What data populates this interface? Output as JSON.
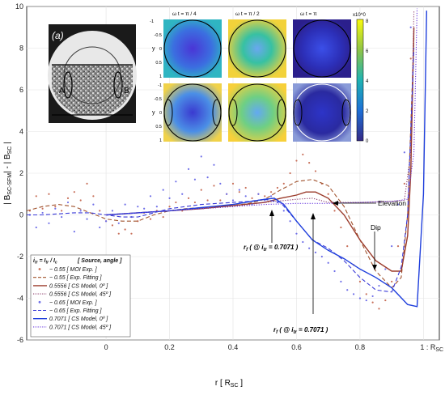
{
  "chart_data": {
    "type": "line",
    "xlabel": "r [ R",
    "xlabel_sub": "SC",
    "xlabel_close": " ]",
    "ylabel_parts": [
      "| B",
      "SC-SFM",
      "| - | B",
      "SC",
      " |"
    ],
    "xlim": [
      -0.25,
      1.05
    ],
    "ylim": [
      -6,
      10
    ],
    "x_ticks": [
      {
        "value": 0,
        "label": "0"
      },
      {
        "value": 0.2,
        "label": "0.2"
      },
      {
        "value": 0.4,
        "label": "0.4"
      },
      {
        "value": 0.6,
        "label": "0.6"
      },
      {
        "value": 0.8,
        "label": "0.8"
      },
      {
        "value": 1.0,
        "label": "1 : R"
      }
    ],
    "x_tick_last_sub": "SC",
    "y_ticks": [
      -6,
      -4,
      -2,
      0,
      2,
      4,
      6,
      8,
      10
    ],
    "grid": true,
    "legend": {
      "placement": "bottom-left",
      "header": "[ Source, angle ]",
      "header_formula": {
        "a": "i",
        "a_sub": "tr",
        "b": " = I",
        "b_sub": "tr",
        "c": " / I",
        "c_sub": "c"
      }
    },
    "series": [
      {
        "name": "~ 0.55 [ MOI Exp. ]",
        "color": "#c8705a",
        "style": "dots",
        "x": [
          -0.24,
          -0.22,
          -0.2,
          -0.18,
          -0.16,
          -0.14,
          -0.12,
          -0.1,
          -0.08,
          -0.06,
          -0.04,
          -0.02,
          0.0,
          0.02,
          0.04,
          0.06,
          0.08,
          0.1,
          0.12,
          0.14,
          0.16,
          0.18,
          0.2,
          0.22,
          0.24,
          0.26,
          0.28,
          0.3,
          0.32,
          0.34,
          0.36,
          0.38,
          0.4,
          0.42,
          0.44,
          0.46,
          0.48,
          0.5,
          0.52,
          0.54,
          0.56,
          0.58,
          0.6,
          0.62,
          0.64,
          0.66,
          0.68,
          0.7,
          0.72,
          0.74,
          0.76,
          0.78,
          0.8,
          0.82,
          0.84,
          0.86,
          0.88,
          0.9,
          0.92,
          0.94,
          0.96
        ],
        "y": [
          0.2,
          0.9,
          0.3,
          1.0,
          0.4,
          0.2,
          0.8,
          1.1,
          0.7,
          1.5,
          0.9,
          0.2,
          -0.3,
          -0.5,
          -0.9,
          -0.7,
          -0.9,
          -0.3,
          0.1,
          -0.2,
          0.2,
          -0.1,
          0.4,
          0.6,
          0.2,
          0.8,
          0.6,
          1.2,
          0.7,
          1.4,
          0.7,
          1.0,
          1.5,
          1.1,
          1.3,
          0.8,
          1.0,
          0.9,
          1.1,
          1.3,
          1.5,
          2.0,
          2.6,
          2.9,
          2.5,
          2.1,
          1.5,
          1.0,
          0.2,
          -0.6,
          -1.5,
          -2.4,
          -3.2,
          -3.8,
          -4.2,
          -4.5,
          -4.1,
          -3.2,
          -1.5,
          1.5,
          7.5
        ]
      },
      {
        "name": "~ 0.55 [ Exp. Fitting ]",
        "color": "#a0522d",
        "style": "dashed",
        "x": [
          -0.25,
          -0.2,
          -0.15,
          -0.1,
          -0.05,
          0.0,
          0.05,
          0.1,
          0.15,
          0.2,
          0.25,
          0.3,
          0.35,
          0.4,
          0.45,
          0.5,
          0.55,
          0.6,
          0.65,
          0.7,
          0.75,
          0.8,
          0.85,
          0.9,
          0.93,
          0.95,
          0.97
        ],
        "y": [
          0.2,
          0.4,
          0.5,
          0.4,
          0.1,
          -0.2,
          -0.3,
          -0.3,
          0.0,
          0.2,
          0.3,
          0.35,
          0.4,
          0.45,
          0.55,
          0.75,
          1.2,
          1.6,
          1.7,
          1.4,
          0.4,
          -1.2,
          -2.7,
          -3.5,
          -3.0,
          0.0,
          8.5
        ]
      },
      {
        "name": "0.5556 [ CS Model, 0º ]",
        "color": "#9b3b2b",
        "style": "solid",
        "x": [
          0.0,
          0.1,
          0.2,
          0.3,
          0.4,
          0.5,
          0.55,
          0.6,
          0.63,
          0.66,
          0.7,
          0.75,
          0.8,
          0.85,
          0.9,
          0.93,
          0.95,
          0.96,
          0.97
        ],
        "y": [
          0.0,
          0.1,
          0.2,
          0.3,
          0.45,
          0.6,
          0.8,
          0.95,
          1.1,
          1.1,
          0.8,
          0.0,
          -1.2,
          -2.2,
          -2.7,
          -2.7,
          -1.0,
          2.0,
          9.0
        ]
      },
      {
        "name": "0.5556 [ CS Model, 45º ]",
        "color": "#8a3a6a",
        "style": "dotted",
        "x": [
          0.0,
          0.1,
          0.2,
          0.3,
          0.4,
          0.5,
          0.6,
          0.65,
          0.7,
          0.8,
          0.9,
          0.94,
          0.96,
          0.97
        ],
        "y": [
          0.0,
          0.1,
          0.2,
          0.3,
          0.4,
          0.6,
          0.75,
          0.8,
          0.6,
          0.6,
          0.65,
          0.7,
          3.0,
          9.8
        ]
      },
      {
        "name": "~ 0.65 [ MOI Exp. ]",
        "color": "#6f6fe8",
        "style": "dots",
        "x": [
          -0.24,
          -0.22,
          -0.2,
          -0.18,
          -0.16,
          -0.14,
          -0.12,
          -0.1,
          -0.08,
          -0.06,
          -0.04,
          -0.02,
          0.0,
          0.02,
          0.04,
          0.06,
          0.08,
          0.1,
          0.12,
          0.14,
          0.16,
          0.18,
          0.2,
          0.22,
          0.24,
          0.26,
          0.28,
          0.3,
          0.32,
          0.34,
          0.36,
          0.38,
          0.4,
          0.42,
          0.44,
          0.46,
          0.48,
          0.5,
          0.52,
          0.54,
          0.56,
          0.58,
          0.6,
          0.62,
          0.64,
          0.66,
          0.68,
          0.7,
          0.72,
          0.74,
          0.76,
          0.78,
          0.8,
          0.82,
          0.84,
          0.86,
          0.88,
          0.9,
          0.92,
          0.94,
          0.96
        ],
        "y": [
          0.0,
          -0.6,
          0.1,
          -0.4,
          0.3,
          -0.1,
          0.6,
          -0.8,
          0.2,
          -0.2,
          0.5,
          -0.6,
          -0.3,
          0.2,
          -0.4,
          0.5,
          -0.1,
          0.4,
          0.3,
          0.9,
          0.4,
          1.2,
          0.8,
          1.6,
          1.0,
          2.2,
          1.7,
          2.8,
          1.8,
          2.4,
          1.5,
          1.0,
          0.7,
          1.2,
          0.9,
          0.5,
          1.0,
          0.7,
          0.9,
          0.6,
          0.2,
          -0.3,
          -0.9,
          -1.3,
          -1.6,
          -1.8,
          -2.0,
          -2.3,
          -2.7,
          -3.2,
          -3.6,
          -3.8,
          -4.0,
          -4.1,
          -3.9,
          -3.4,
          -2.6,
          -1.5,
          0.5,
          3.0,
          9.0
        ]
      },
      {
        "name": "~ 0.65 [ Exp. Fitting ]",
        "color": "#3a3ad8",
        "style": "dashed",
        "x": [
          -0.25,
          -0.2,
          -0.15,
          -0.1,
          -0.05,
          0.0,
          0.05,
          0.1,
          0.15,
          0.2,
          0.25,
          0.3,
          0.35,
          0.4,
          0.45,
          0.5,
          0.55,
          0.6,
          0.65,
          0.7,
          0.75,
          0.8,
          0.85,
          0.9,
          0.93,
          0.95,
          0.97
        ],
        "y": [
          0.0,
          0.0,
          0.05,
          0.1,
          0.1,
          0.0,
          -0.1,
          -0.1,
          0.1,
          0.3,
          0.4,
          0.5,
          0.55,
          0.6,
          0.65,
          0.75,
          0.6,
          -0.3,
          -1.2,
          -1.6,
          -2.2,
          -3.0,
          -3.6,
          -3.7,
          -2.5,
          0.0,
          8.0
        ]
      },
      {
        "name": "0.7071 [ CS Model, 0º ]",
        "color": "#1f3fdc",
        "style": "solid",
        "x": [
          0.0,
          0.1,
          0.2,
          0.3,
          0.4,
          0.5,
          0.53,
          0.56,
          0.6,
          0.65,
          0.7,
          0.75,
          0.8,
          0.85,
          0.9,
          0.95,
          0.98,
          1.0,
          1.01
        ],
        "y": [
          0.0,
          0.1,
          0.2,
          0.35,
          0.5,
          0.75,
          0.8,
          0.5,
          -0.3,
          -1.2,
          -1.7,
          -2.1,
          -2.6,
          -3.0,
          -3.5,
          -4.3,
          -4.4,
          1.0,
          9.8
        ]
      },
      {
        "name": "0.7071 [ CS Model, 45º ]",
        "color": "#6a3adf",
        "style": "dotted",
        "x": [
          0.0,
          0.1,
          0.2,
          0.3,
          0.4,
          0.5,
          0.6,
          0.7,
          0.8,
          0.9,
          0.95,
          0.97,
          0.98
        ],
        "y": [
          0.0,
          0.1,
          0.2,
          0.3,
          0.4,
          0.5,
          0.55,
          0.55,
          0.6,
          0.65,
          0.75,
          3.0,
          9.9
        ]
      }
    ],
    "annotations": [
      {
        "text": "Elevation"
      },
      {
        "text": "Dip"
      },
      {
        "text_a": "r",
        "text_a_sub": "f",
        "text_b": " ( @ i",
        "text_b_sub": "tr",
        "text_c": " = 0.7071 )"
      },
      {
        "text_a": "r",
        "text_a_sub": "f",
        "text_b": " ( @ i",
        "text_b_sub": "tr",
        "text_c": " = 0.7071 )"
      }
    ],
    "inset_photo": {
      "label": "(a)",
      "region_a": "A",
      "region_b": "B"
    },
    "inset_maps": {
      "titles": [
        "ω t = π / 4",
        "ω t = π / 2",
        "ω t = π"
      ],
      "y_axis_label": "y",
      "y_ticks": [
        "-1",
        "-0.5",
        "0",
        "0.5",
        "1"
      ],
      "colorbar_exponent": "x10^0",
      "colorbar_ticks": [
        "8",
        "6",
        "4",
        "2",
        "0"
      ]
    }
  }
}
